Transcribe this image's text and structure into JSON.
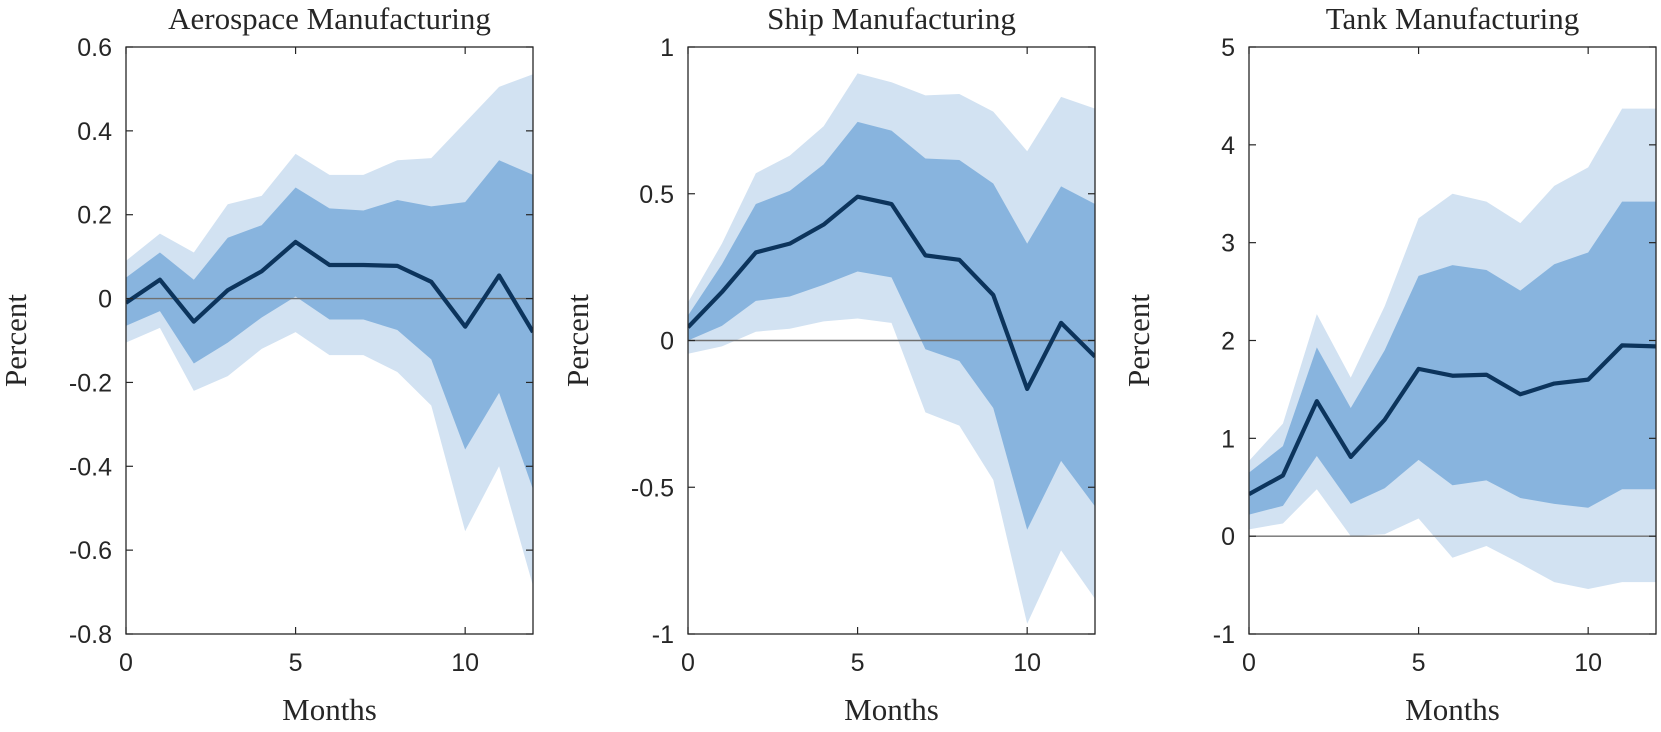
{
  "chart_data": [
    {
      "type": "area",
      "title": "Aerospace Manufacturing",
      "xlabel": "Months",
      "ylabel": "Percent",
      "xlim": [
        0,
        12
      ],
      "ylim": [
        -0.8,
        0.6
      ],
      "xticks": [
        0,
        5,
        10
      ],
      "xtick_labels": [
        "0",
        "5",
        "10"
      ],
      "yticks": [
        0.6,
        0.4,
        0.2,
        0,
        -0.2,
        -0.4,
        -0.6,
        -0.8
      ],
      "ytick_labels": [
        "0.6",
        "0.4",
        "0.2",
        "0",
        "-0.2",
        "-0.4",
        "-0.6",
        "-0.8"
      ],
      "x": [
        0,
        1,
        2,
        3,
        4,
        5,
        6,
        7,
        8,
        9,
        10,
        11,
        12
      ],
      "series": [
        {
          "name": "outer_upper",
          "values": [
            0.09,
            0.155,
            0.11,
            0.225,
            0.245,
            0.345,
            0.295,
            0.295,
            0.33,
            0.335,
            0.42,
            0.505,
            0.535
          ]
        },
        {
          "name": "inner_upper",
          "values": [
            0.05,
            0.11,
            0.045,
            0.145,
            0.175,
            0.265,
            0.215,
            0.21,
            0.235,
            0.22,
            0.23,
            0.33,
            0.295
          ]
        },
        {
          "name": "median",
          "values": [
            -0.01,
            0.045,
            -0.055,
            0.02,
            0.065,
            0.135,
            0.08,
            0.08,
            0.078,
            0.04,
            -0.067,
            0.055,
            -0.08
          ]
        },
        {
          "name": "inner_lower",
          "values": [
            -0.065,
            -0.03,
            -0.155,
            -0.105,
            -0.045,
            0.005,
            -0.05,
            -0.05,
            -0.075,
            -0.145,
            -0.36,
            -0.225,
            -0.455
          ]
        },
        {
          "name": "outer_lower",
          "values": [
            -0.105,
            -0.07,
            -0.22,
            -0.185,
            -0.12,
            -0.08,
            -0.135,
            -0.135,
            -0.175,
            -0.255,
            -0.555,
            -0.4,
            -0.685
          ]
        }
      ]
    },
    {
      "type": "area",
      "title": "Ship Manufacturing",
      "xlabel": "Months",
      "ylabel": "Percent",
      "xlim": [
        0,
        12
      ],
      "ylim": [
        -1,
        1
      ],
      "xticks": [
        0,
        5,
        10
      ],
      "xtick_labels": [
        "0",
        "5",
        "10"
      ],
      "yticks": [
        1,
        0.5,
        0,
        -0.5,
        -1
      ],
      "ytick_labels": [
        "1",
        "0.5",
        "0",
        "-0.5",
        "-1"
      ],
      "x": [
        0,
        1,
        2,
        3,
        4,
        5,
        6,
        7,
        8,
        9,
        10,
        11,
        12
      ],
      "series": [
        {
          "name": "outer_upper",
          "values": [
            0.13,
            0.33,
            0.57,
            0.63,
            0.73,
            0.91,
            0.88,
            0.835,
            0.84,
            0.78,
            0.645,
            0.83,
            0.79
          ]
        },
        {
          "name": "inner_upper",
          "values": [
            0.085,
            0.26,
            0.465,
            0.51,
            0.6,
            0.745,
            0.715,
            0.62,
            0.615,
            0.535,
            0.33,
            0.525,
            0.465
          ]
        },
        {
          "name": "median",
          "values": [
            0.045,
            0.165,
            0.3,
            0.33,
            0.395,
            0.49,
            0.465,
            0.29,
            0.275,
            0.155,
            -0.165,
            0.06,
            -0.055
          ]
        },
        {
          "name": "inner_lower",
          "values": [
            0.0,
            0.05,
            0.135,
            0.15,
            0.19,
            0.235,
            0.215,
            -0.03,
            -0.07,
            -0.23,
            -0.645,
            -0.41,
            -0.565
          ]
        },
        {
          "name": "outer_lower",
          "values": [
            -0.045,
            -0.02,
            0.03,
            0.04,
            0.065,
            0.075,
            0.06,
            -0.245,
            -0.29,
            -0.475,
            -0.965,
            -0.715,
            -0.88
          ]
        }
      ]
    },
    {
      "type": "area",
      "title": "Tank Manufacturing",
      "xlabel": "Months",
      "ylabel": "Percent",
      "xlim": [
        0,
        12
      ],
      "ylim": [
        -1,
        5
      ],
      "xticks": [
        0,
        5,
        10
      ],
      "xtick_labels": [
        "0",
        "5",
        "10"
      ],
      "yticks": [
        5,
        4,
        3,
        2,
        1,
        0,
        -1
      ],
      "ytick_labels": [
        "5",
        "4",
        "3",
        "2",
        "1",
        "0",
        "-1"
      ],
      "x": [
        0,
        1,
        2,
        3,
        4,
        5,
        6,
        7,
        8,
        9,
        10,
        11,
        12
      ],
      "series": [
        {
          "name": "outer_upper",
          "values": [
            0.77,
            1.15,
            2.27,
            1.62,
            2.35,
            3.25,
            3.5,
            3.42,
            3.2,
            3.58,
            3.77,
            4.37,
            4.37
          ]
        },
        {
          "name": "inner_upper",
          "values": [
            0.65,
            0.92,
            1.93,
            1.31,
            1.9,
            2.66,
            2.77,
            2.72,
            2.51,
            2.78,
            2.9,
            3.42,
            3.42
          ]
        },
        {
          "name": "median",
          "values": [
            0.43,
            0.62,
            1.38,
            0.81,
            1.19,
            1.71,
            1.64,
            1.65,
            1.45,
            1.56,
            1.6,
            1.95,
            1.94
          ]
        },
        {
          "name": "inner_lower",
          "values": [
            0.22,
            0.31,
            0.82,
            0.33,
            0.49,
            0.78,
            0.52,
            0.57,
            0.39,
            0.33,
            0.29,
            0.48,
            0.48
          ]
        },
        {
          "name": "outer_lower",
          "values": [
            0.07,
            0.13,
            0.48,
            0.0,
            0.02,
            0.18,
            -0.22,
            -0.1,
            -0.28,
            -0.47,
            -0.54,
            -0.47,
            -0.47
          ]
        }
      ]
    }
  ],
  "colors": {
    "outer_band": "#d2e2f2",
    "inner_band": "#88b4de",
    "median_line": "#0c345c",
    "zero_line": "#707070",
    "axis": "#262626"
  }
}
